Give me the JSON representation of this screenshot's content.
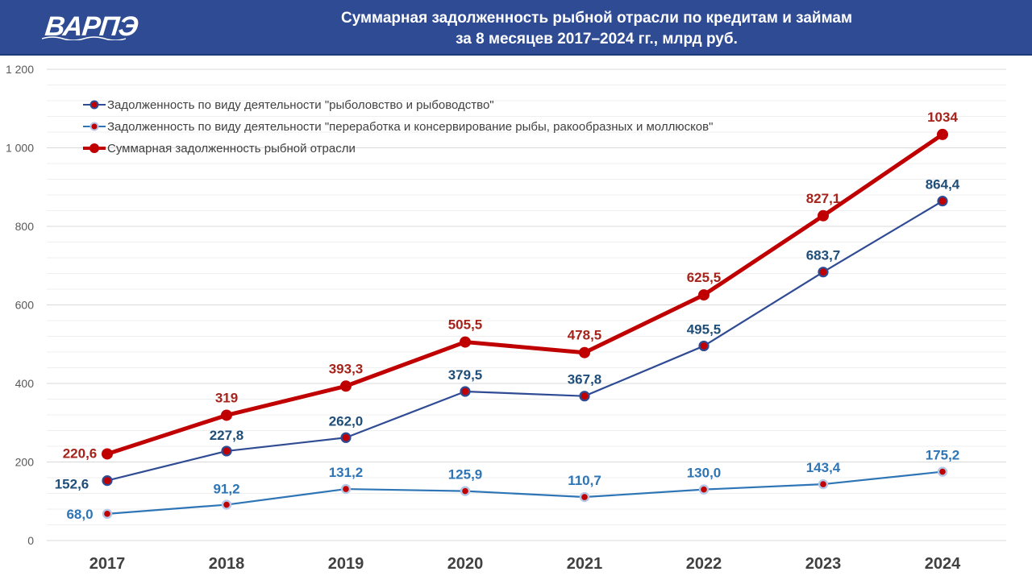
{
  "header": {
    "logo": "ВАРПЭ",
    "title_line1": "Суммарная задолженность рыбной отрасли по кредитам и займам",
    "title_line2": "за 8 месяцев 2017–2024 гг., млрд руб."
  },
  "colors": {
    "header_bg": "#2f4b93",
    "total": "#c00000",
    "fishing": "#2f4b93",
    "processing": "#2e75b6",
    "total_label": "#a5231b",
    "fishing_label": "#1f4e79",
    "processing_label": "#2e75b6"
  },
  "chart_data": {
    "type": "line",
    "categories": [
      "2017",
      "2018",
      "2019",
      "2020",
      "2021",
      "2022",
      "2023",
      "2024"
    ],
    "ylim": [
      0,
      1200
    ],
    "yticks": [
      0,
      200,
      400,
      600,
      800,
      1000,
      1200
    ],
    "ytick_labels": [
      "0",
      "200",
      "400",
      "600",
      "800",
      "1 000",
      "1 200"
    ],
    "grid": true,
    "legend_position": "top-left",
    "series": [
      {
        "name": "Задолженность по виду деятельности \"рыболовство и рыбоводство\"",
        "key": "fishing",
        "values": [
          152.6,
          227.8,
          262.0,
          379.5,
          367.8,
          495.5,
          683.7,
          864.4
        ],
        "labels": [
          "152,6",
          "227,8",
          "262,0",
          "379,5",
          "367,8",
          "495,5",
          "683,7",
          "864,4"
        ]
      },
      {
        "name": "Задолженность по виду деятельности \"переработка и консервирование рыбы, ракообразных и моллюсков\"",
        "key": "processing",
        "values": [
          68.0,
          91.2,
          131.2,
          125.9,
          110.7,
          130.0,
          143.4,
          175.2
        ],
        "labels": [
          "68,0",
          "91,2",
          "131,2",
          "125,9",
          "110,7",
          "130,0",
          "143,4",
          "175,2"
        ]
      },
      {
        "name": "Суммарная задолженность рыбной отрасли",
        "key": "total",
        "values": [
          220.6,
          319,
          393.3,
          505.5,
          478.5,
          625.5,
          827.1,
          1034
        ],
        "labels": [
          "220,6",
          "319",
          "393,3",
          "505,5",
          "478,5",
          "625,5",
          "827,1",
          "1034"
        ]
      }
    ]
  }
}
